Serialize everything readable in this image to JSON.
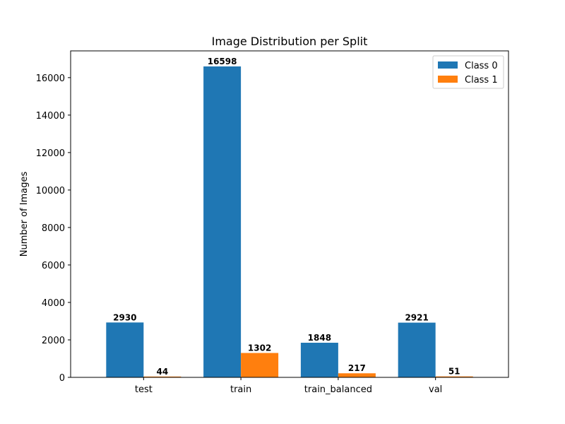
{
  "chart_data": {
    "type": "bar",
    "title": "Image Distribution per Split",
    "xlabel": "",
    "ylabel": "Number of Images",
    "categories": [
      "test",
      "train",
      "train_balanced",
      "val"
    ],
    "series": [
      {
        "name": "Class 0",
        "color": "#1f77b4",
        "values": [
          2930,
          16598,
          1848,
          2921
        ],
        "labels": [
          "2930",
          "16598",
          "1848",
          "2921"
        ]
      },
      {
        "name": "Class 1",
        "color": "#ff7f0e",
        "values": [
          44,
          1302,
          217,
          51
        ],
        "labels": [
          "44",
          "1302",
          "217",
          "51"
        ]
      }
    ],
    "ylim": [
      0,
      17427.9
    ],
    "yticks": [
      0,
      2000,
      4000,
      6000,
      8000,
      10000,
      12000,
      14000,
      16000
    ],
    "ytick_labels": [
      "0",
      "2000",
      "4000",
      "6000",
      "8000",
      "10000",
      "12000",
      "14000",
      "16000"
    ],
    "grid": false,
    "legend_position": "top-right"
  }
}
